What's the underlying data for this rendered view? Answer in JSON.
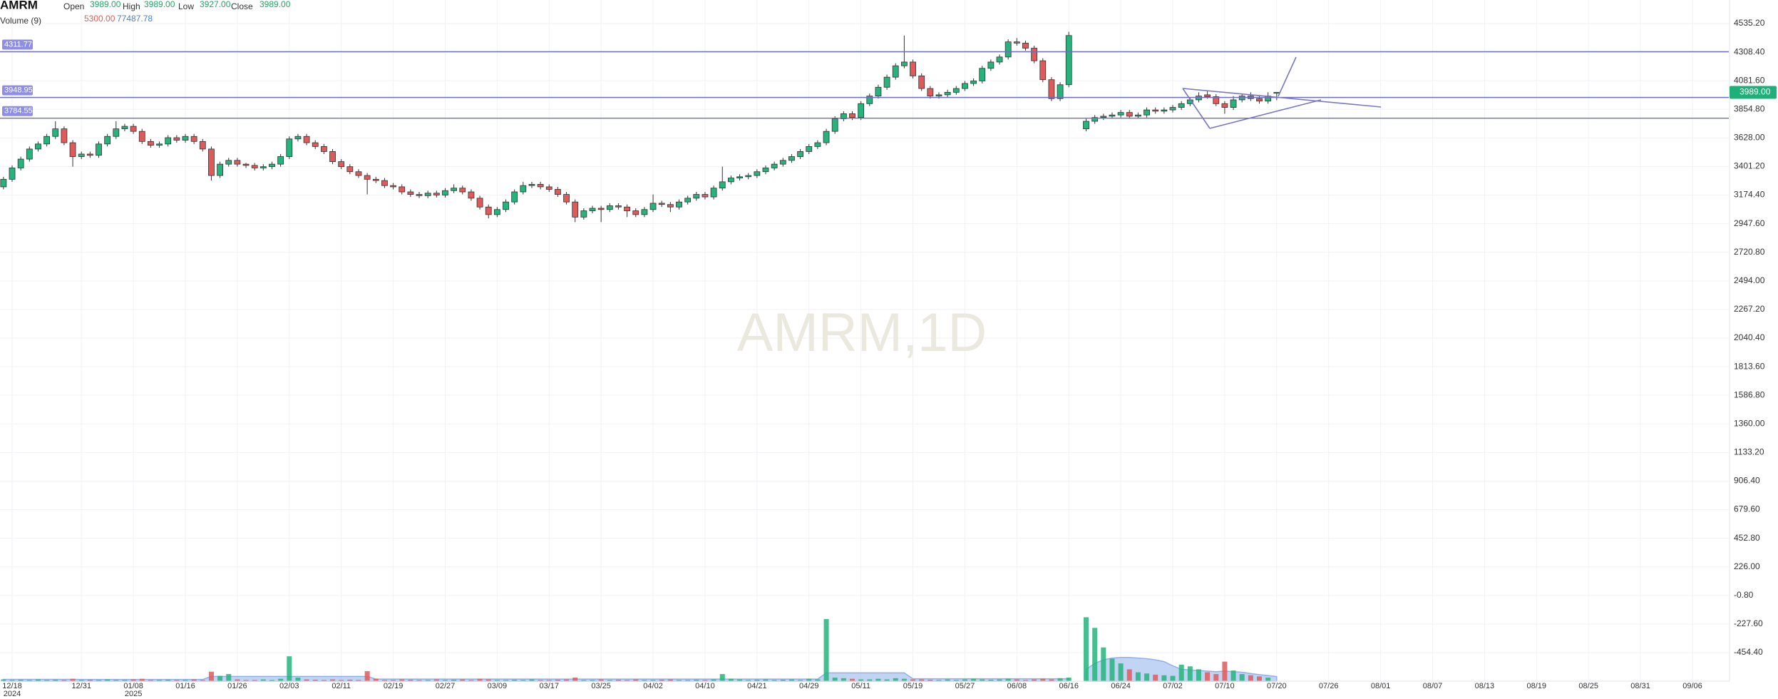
{
  "header": {
    "symbol": "AMRM",
    "open_label": "Open",
    "open": "3989.00",
    "high_label": "High",
    "high": "3989.00",
    "low_label": "Low",
    "low": "3927.00",
    "close_label": "Close",
    "close": "3989.00",
    "volume_label": "Volume (9)",
    "volume": "5300.00",
    "volume_ma": "77487.78"
  },
  "chart_data": {
    "type": "candlestick",
    "watermark": "AMRM,1D",
    "up_color": "#26b47c",
    "down_color": "#e05a5a",
    "volume_ma_color": "#8fb0ea",
    "hline_color": "#6e6ec0",
    "grid": true,
    "xlim": [
      -0.4,
      199.2
    ],
    "ylim": [
      -680.7,
      4721.9
    ],
    "y2lim": [
      0,
      2000000
    ],
    "yticks": [
      {
        "value": 4535.2,
        "label": "4535.20"
      },
      {
        "value": 4308.4,
        "label": "4308.40"
      },
      {
        "value": 4081.6,
        "label": "4081.60"
      },
      {
        "value": 3854.8,
        "label": "3854.80"
      },
      {
        "value": 3628,
        "label": "3628.00"
      },
      {
        "value": 3401.2,
        "label": "3401.20"
      },
      {
        "value": 3174.4,
        "label": "3174.40"
      },
      {
        "value": 2947.6,
        "label": "2947.60"
      },
      {
        "value": 2720.8,
        "label": "2720.80"
      },
      {
        "value": 2494,
        "label": "2494.00"
      },
      {
        "value": 2267.2,
        "label": "2267.20"
      },
      {
        "value": 2040.4,
        "label": "2040.40"
      },
      {
        "value": 1813.6,
        "label": "1813.60"
      },
      {
        "value": 1586.8,
        "label": "1586.80"
      },
      {
        "value": 1360,
        "label": "1360.00"
      },
      {
        "value": 1133.2,
        "label": "1133.20"
      },
      {
        "value": 906.4,
        "label": "906.40"
      },
      {
        "value": 679.6,
        "label": "679.60"
      },
      {
        "value": 452.8,
        "label": "452.80"
      },
      {
        "value": 226,
        "label": "226.00"
      },
      {
        "value": -0.8,
        "label": "-0.80"
      },
      {
        "value": -227.6,
        "label": "-227.60"
      },
      {
        "value": -454.4,
        "label": "-454.40"
      }
    ],
    "xticks": [
      {
        "value": 1,
        "label": "12/18"
      },
      {
        "value": 9,
        "label": "12/31"
      },
      {
        "value": 15,
        "label": "01/08"
      },
      {
        "value": 21,
        "label": "01/16"
      },
      {
        "value": 27,
        "label": "01/26"
      },
      {
        "value": 33,
        "label": "02/03"
      },
      {
        "value": 39,
        "label": "02/11"
      },
      {
        "value": 45,
        "label": "02/19"
      },
      {
        "value": 51,
        "label": "02/27"
      },
      {
        "value": 57,
        "label": "03/09"
      },
      {
        "value": 63,
        "label": "03/17"
      },
      {
        "value": 69,
        "label": "03/25"
      },
      {
        "value": 75,
        "label": "04/02"
      },
      {
        "value": 81,
        "label": "04/10"
      },
      {
        "value": 87,
        "label": "04/21"
      },
      {
        "value": 93,
        "label": "04/29"
      },
      {
        "value": 99,
        "label": "05/11"
      },
      {
        "value": 105,
        "label": "05/19"
      },
      {
        "value": 111,
        "label": "05/27"
      },
      {
        "value": 117,
        "label": "06/08"
      },
      {
        "value": 123,
        "label": "06/16"
      },
      {
        "value": 129,
        "label": "06/24"
      },
      {
        "value": 135,
        "label": "07/02"
      },
      {
        "value": 141,
        "label": "07/10"
      },
      {
        "value": 147,
        "label": "07/20"
      },
      {
        "value": 153,
        "label": "07/26"
      },
      {
        "value": 159,
        "label": "08/01"
      },
      {
        "value": 165,
        "label": "08/07"
      },
      {
        "value": 171,
        "label": "08/13"
      },
      {
        "value": 177,
        "label": "08/19"
      },
      {
        "value": 183,
        "label": "08/25"
      },
      {
        "value": 189,
        "label": "08/31"
      },
      {
        "value": 195,
        "label": "09/06"
      }
    ],
    "x_year_ticks": [
      {
        "value": 1,
        "label": "2024"
      },
      {
        "value": 15,
        "label": "2025"
      }
    ],
    "hlines": [
      4311.77,
      3948.95,
      3784.55
    ],
    "last_price": {
      "value": 3989,
      "label": "3989.00"
    },
    "ohlc": [
      [
        3240,
        3320,
        3220,
        3300
      ],
      [
        3300,
        3410,
        3280,
        3390
      ],
      [
        3390,
        3480,
        3370,
        3460
      ],
      [
        3460,
        3560,
        3440,
        3540
      ],
      [
        3540,
        3600,
        3520,
        3580
      ],
      [
        3580,
        3660,
        3560,
        3640
      ],
      [
        3640,
        3760,
        3620,
        3700
      ],
      [
        3700,
        3720,
        3570,
        3590
      ],
      [
        3590,
        3610,
        3400,
        3480
      ],
      [
        3480,
        3520,
        3460,
        3500
      ],
      [
        3500,
        3520,
        3470,
        3490
      ],
      [
        3490,
        3600,
        3470,
        3580
      ],
      [
        3580,
        3660,
        3560,
        3640
      ],
      [
        3640,
        3760,
        3620,
        3700
      ],
      [
        3700,
        3740,
        3680,
        3720
      ],
      [
        3720,
        3740,
        3660,
        3680
      ],
      [
        3680,
        3700,
        3580,
        3600
      ],
      [
        3600,
        3620,
        3550,
        3570
      ],
      [
        3570,
        3600,
        3550,
        3580
      ],
      [
        3580,
        3650,
        3560,
        3630
      ],
      [
        3630,
        3650,
        3590,
        3610
      ],
      [
        3610,
        3660,
        3590,
        3640
      ],
      [
        3640,
        3660,
        3580,
        3600
      ],
      [
        3600,
        3620,
        3520,
        3540
      ],
      [
        3540,
        3560,
        3290,
        3330
      ],
      [
        3330,
        3440,
        3310,
        3420
      ],
      [
        3420,
        3470,
        3400,
        3450
      ],
      [
        3450,
        3470,
        3400,
        3420
      ],
      [
        3420,
        3430,
        3390,
        3410
      ],
      [
        3410,
        3430,
        3370,
        3390
      ],
      [
        3390,
        3420,
        3370,
        3400
      ],
      [
        3400,
        3440,
        3380,
        3420
      ],
      [
        3420,
        3500,
        3400,
        3480
      ],
      [
        3480,
        3640,
        3460,
        3620
      ],
      [
        3620,
        3660,
        3600,
        3640
      ],
      [
        3640,
        3660,
        3570,
        3590
      ],
      [
        3590,
        3610,
        3540,
        3560
      ],
      [
        3560,
        3580,
        3500,
        3520
      ],
      [
        3520,
        3540,
        3420,
        3440
      ],
      [
        3440,
        3460,
        3380,
        3400
      ],
      [
        3400,
        3420,
        3340,
        3360
      ],
      [
        3360,
        3380,
        3310,
        3330
      ],
      [
        3330,
        3350,
        3180,
        3300
      ],
      [
        3300,
        3320,
        3270,
        3290
      ],
      [
        3290,
        3310,
        3230,
        3250
      ],
      [
        3250,
        3270,
        3220,
        3240
      ],
      [
        3240,
        3260,
        3180,
        3200
      ],
      [
        3200,
        3220,
        3160,
        3180
      ],
      [
        3180,
        3200,
        3150,
        3170
      ],
      [
        3170,
        3210,
        3150,
        3190
      ],
      [
        3190,
        3210,
        3155,
        3175
      ],
      [
        3175,
        3230,
        3155,
        3210
      ],
      [
        3210,
        3260,
        3190,
        3230
      ],
      [
        3230,
        3250,
        3180,
        3200
      ],
      [
        3200,
        3220,
        3130,
        3150
      ],
      [
        3150,
        3170,
        3060,
        3080
      ],
      [
        3080,
        3100,
        2990,
        3020
      ],
      [
        3020,
        3080,
        3000,
        3060
      ],
      [
        3060,
        3140,
        3040,
        3120
      ],
      [
        3120,
        3220,
        3100,
        3200
      ],
      [
        3200,
        3280,
        3180,
        3250
      ],
      [
        3250,
        3280,
        3230,
        3260
      ],
      [
        3260,
        3280,
        3220,
        3240
      ],
      [
        3240,
        3260,
        3200,
        3220
      ],
      [
        3220,
        3240,
        3160,
        3180
      ],
      [
        3180,
        3200,
        3100,
        3120
      ],
      [
        3120,
        3140,
        2960,
        3000
      ],
      [
        3000,
        3070,
        2980,
        3050
      ],
      [
        3050,
        3090,
        3030,
        3070
      ],
      [
        3070,
        3090,
        2960,
        3060
      ],
      [
        3060,
        3110,
        3040,
        3090
      ],
      [
        3090,
        3110,
        3060,
        3080
      ],
      [
        3080,
        3100,
        3000,
        3050
      ],
      [
        3050,
        3070,
        3000,
        3020
      ],
      [
        3020,
        3080,
        3000,
        3060
      ],
      [
        3060,
        3180,
        3040,
        3110
      ],
      [
        3110,
        3130,
        3080,
        3100
      ],
      [
        3100,
        3120,
        3040,
        3080
      ],
      [
        3080,
        3140,
        3060,
        3120
      ],
      [
        3120,
        3170,
        3100,
        3150
      ],
      [
        3150,
        3200,
        3130,
        3180
      ],
      [
        3180,
        3200,
        3140,
        3160
      ],
      [
        3160,
        3250,
        3140,
        3230
      ],
      [
        3230,
        3400,
        3210,
        3280
      ],
      [
        3280,
        3330,
        3260,
        3310
      ],
      [
        3310,
        3340,
        3290,
        3320
      ],
      [
        3320,
        3350,
        3300,
        3330
      ],
      [
        3330,
        3380,
        3310,
        3360
      ],
      [
        3360,
        3410,
        3340,
        3390
      ],
      [
        3390,
        3440,
        3370,
        3420
      ],
      [
        3420,
        3470,
        3400,
        3450
      ],
      [
        3450,
        3500,
        3430,
        3480
      ],
      [
        3480,
        3540,
        3460,
        3520
      ],
      [
        3520,
        3580,
        3500,
        3560
      ],
      [
        3560,
        3610,
        3540,
        3590
      ],
      [
        3590,
        3700,
        3570,
        3680
      ],
      [
        3680,
        3800,
        3660,
        3780
      ],
      [
        3780,
        3840,
        3760,
        3820
      ],
      [
        3820,
        3840,
        3770,
        3790
      ],
      [
        3790,
        3920,
        3770,
        3900
      ],
      [
        3900,
        3980,
        3880,
        3960
      ],
      [
        3960,
        4050,
        3940,
        4030
      ],
      [
        4030,
        4130,
        4010,
        4110
      ],
      [
        4110,
        4220,
        4090,
        4200
      ],
      [
        4200,
        4440,
        4180,
        4230
      ],
      [
        4230,
        4250,
        4100,
        4120
      ],
      [
        4120,
        4140,
        4000,
        4020
      ],
      [
        4020,
        4040,
        3940,
        3960
      ],
      [
        3960,
        3990,
        3940,
        3970
      ],
      [
        3970,
        4010,
        3950,
        3990
      ],
      [
        3990,
        4040,
        3970,
        4020
      ],
      [
        4020,
        4080,
        4000,
        4060
      ],
      [
        4060,
        4100,
        4040,
        4080
      ],
      [
        4080,
        4200,
        4060,
        4180
      ],
      [
        4180,
        4250,
        4160,
        4230
      ],
      [
        4230,
        4290,
        4210,
        4270
      ],
      [
        4270,
        4410,
        4250,
        4390
      ],
      [
        4390,
        4420,
        4360,
        4380
      ],
      [
        4380,
        4400,
        4320,
        4340
      ],
      [
        4340,
        4360,
        4220,
        4240
      ],
      [
        4240,
        4260,
        4070,
        4090
      ],
      [
        4090,
        4110,
        3920,
        3940
      ],
      [
        3940,
        4070,
        3920,
        4050
      ],
      [
        4050,
        4470,
        4030,
        4440
      ],
      null,
      [
        3700,
        3780,
        3680,
        3760
      ],
      [
        3760,
        3810,
        3740,
        3790
      ],
      [
        3790,
        3820,
        3770,
        3800
      ],
      [
        3800,
        3830,
        3780,
        3810
      ],
      [
        3810,
        3850,
        3790,
        3830
      ],
      [
        3830,
        3850,
        3780,
        3800
      ],
      [
        3800,
        3830,
        3780,
        3810
      ],
      [
        3810,
        3870,
        3790,
        3850
      ],
      [
        3850,
        3870,
        3820,
        3840
      ],
      [
        3840,
        3870,
        3820,
        3850
      ],
      [
        3850,
        3890,
        3830,
        3870
      ],
      [
        3870,
        3920,
        3850,
        3900
      ],
      [
        3900,
        3950,
        3880,
        3930
      ],
      [
        3930,
        3990,
        3910,
        3960
      ],
      [
        3970,
        4000,
        3940,
        3955
      ],
      [
        3955,
        3975,
        3880,
        3900
      ],
      [
        3900,
        3920,
        3820,
        3870
      ],
      [
        3870,
        3960,
        3850,
        3930
      ],
      [
        3930,
        3980,
        3910,
        3960
      ],
      [
        3960,
        3990,
        3920,
        3940
      ],
      [
        3940,
        3960,
        3900,
        3920
      ],
      [
        3920,
        3990,
        3900,
        3960
      ],
      [
        3989,
        3989,
        3927,
        3989
      ]
    ],
    "volume": [
      30000,
      20000,
      25000,
      20000,
      30000,
      20000,
      25000,
      20000,
      40000,
      20000,
      25000,
      20000,
      30000,
      20000,
      20000,
      30000,
      40000,
      20000,
      20000,
      25000,
      20000,
      20000,
      30000,
      20000,
      160000,
      90000,
      120000,
      30000,
      20000,
      20000,
      30000,
      20000,
      40000,
      420000,
      60000,
      30000,
      25000,
      20000,
      30000,
      20000,
      25000,
      20000,
      170000,
      40000,
      20000,
      20000,
      30000,
      25000,
      20000,
      20000,
      30000,
      20000,
      25000,
      30000,
      20000,
      40000,
      30000,
      20000,
      20000,
      25000,
      20000,
      30000,
      20000,
      20000,
      25000,
      30000,
      60000,
      20000,
      20000,
      30000,
      20000,
      25000,
      20000,
      30000,
      20000,
      20000,
      25000,
      30000,
      20000,
      20000,
      25000,
      20000,
      30000,
      120000,
      40000,
      30000,
      20000,
      25000,
      30000,
      20000,
      25000,
      30000,
      20000,
      40000,
      30000,
      1050000,
      60000,
      50000,
      40000,
      30000,
      30000,
      40000,
      30000,
      50000,
      40000,
      30000,
      30000,
      25000,
      20000,
      30000,
      20000,
      30000,
      40000,
      30000,
      25000,
      30000,
      40000,
      30000,
      20000,
      30000,
      40000,
      30000,
      50000,
      60000,
      null,
      1080000,
      900000,
      570000,
      380000,
      300000,
      200000,
      150000,
      130000,
      110000,
      100000,
      90000,
      280000,
      250000,
      200000,
      150000,
      120000,
      330000,
      180000,
      120000,
      100000,
      80000,
      60000,
      5300
    ],
    "volume_ma": [
      30000,
      30000,
      30000,
      30000,
      30000,
      30000,
      30000,
      30000,
      30000,
      28000,
      28000,
      28000,
      28000,
      28000,
      28000,
      28000,
      28000,
      28000,
      28000,
      28000,
      28000,
      28000,
      28000,
      28000,
      80000,
      80000,
      80000,
      80000,
      80000,
      80000,
      80000,
      80000,
      80000,
      80000,
      80000,
      80000,
      80000,
      80000,
      80000,
      80000,
      80000,
      80000,
      80000,
      35000,
      35000,
      35000,
      35000,
      35000,
      35000,
      35000,
      35000,
      35000,
      35000,
      35000,
      35000,
      35000,
      35000,
      35000,
      35000,
      35000,
      35000,
      35000,
      35000,
      35000,
      35000,
      35000,
      35000,
      35000,
      35000,
      35000,
      35000,
      35000,
      35000,
      35000,
      35000,
      35000,
      35000,
      35000,
      35000,
      35000,
      35000,
      35000,
      35000,
      35000,
      35000,
      35000,
      35000,
      35000,
      35000,
      35000,
      35000,
      35000,
      35000,
      35000,
      35000,
      140000,
      140000,
      140000,
      140000,
      140000,
      140000,
      140000,
      140000,
      140000,
      140000,
      40000,
      40000,
      40000,
      40000,
      40000,
      40000,
      40000,
      40000,
      40000,
      40000,
      40000,
      40000,
      40000,
      40000,
      40000,
      40000,
      40000,
      40000,
      40000,
      null,
      200000,
      300000,
      360000,
      390000,
      400000,
      400000,
      390000,
      380000,
      360000,
      330000,
      260000,
      200000,
      190000,
      180000,
      170000,
      160000,
      170000,
      160000,
      150000,
      130000,
      110000,
      95000,
      77487.78
    ]
  }
}
